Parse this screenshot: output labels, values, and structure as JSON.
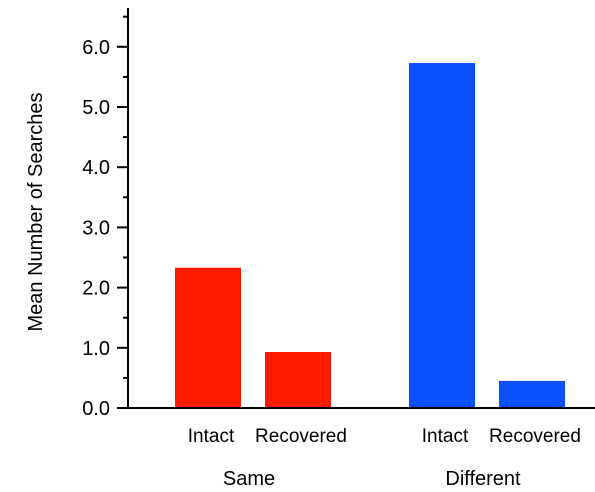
{
  "chart_data": {
    "type": "bar",
    "ylabel": "Mean Number of Searches",
    "xlabel": "",
    "ylim": [
      0,
      6.5
    ],
    "yticks": [
      "0.0",
      "1.0",
      "2.0",
      "3.0",
      "4.0",
      "5.0",
      "6.0"
    ],
    "grid": false,
    "legend": "none",
    "groups": [
      {
        "name": "Same",
        "color": "#ff1a00",
        "categories": [
          "Intact",
          "Recovered"
        ],
        "values": [
          2.33,
          0.93
        ]
      },
      {
        "name": "Different",
        "color": "#0a50ff",
        "categories": [
          "Intact",
          "Recovered"
        ],
        "values": [
          5.73,
          0.45
        ]
      }
    ]
  }
}
